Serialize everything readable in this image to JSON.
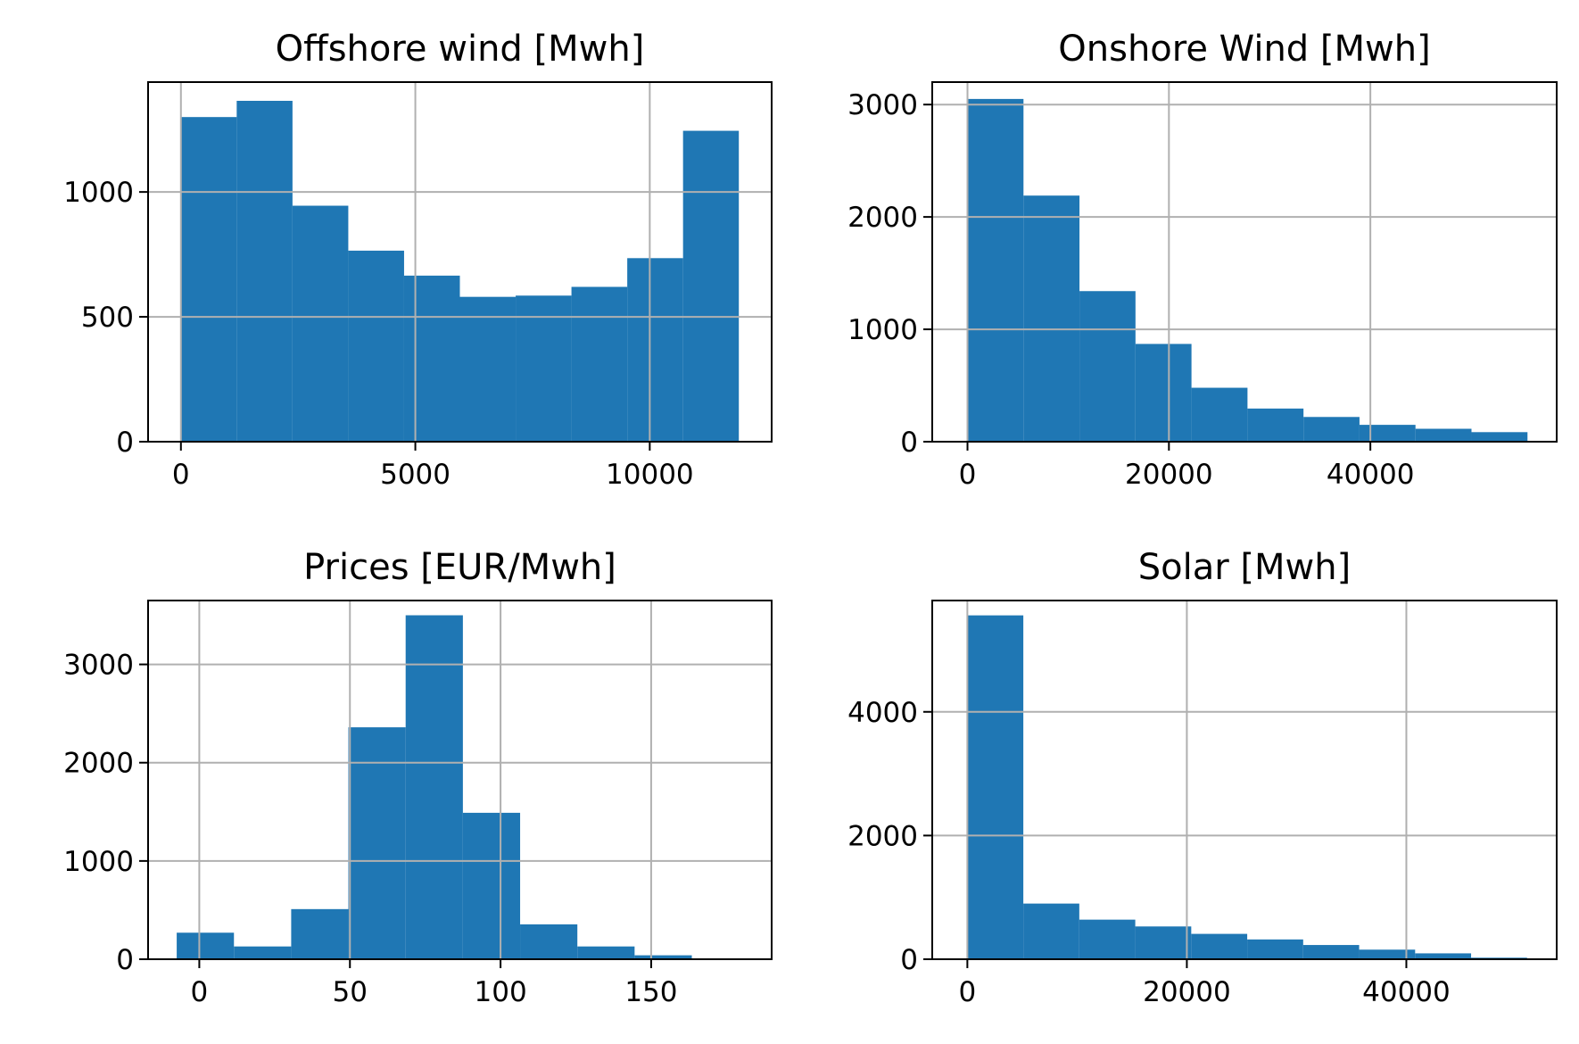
{
  "colors": {
    "bar": "#1f77b4",
    "grid": "#b0b0b0"
  },
  "chart_data": [
    {
      "type": "bar",
      "title": "Offshore wind [Mwh]",
      "xlabel": "",
      "ylabel": "",
      "grid": true,
      "xlim": [
        -700,
        12600
      ],
      "ylim": [
        0,
        1440
      ],
      "xticks": [
        0,
        5000,
        10000
      ],
      "yticks": [
        0,
        500,
        1000
      ],
      "bins": [
        {
          "x0": 0,
          "x1": 1190,
          "count": 1300
        },
        {
          "x0": 1190,
          "x1": 2380,
          "count": 1365
        },
        {
          "x0": 2380,
          "x1": 3570,
          "count": 945
        },
        {
          "x0": 3570,
          "x1": 4760,
          "count": 765
        },
        {
          "x0": 4760,
          "x1": 5950,
          "count": 665
        },
        {
          "x0": 5950,
          "x1": 7140,
          "count": 580
        },
        {
          "x0": 7140,
          "x1": 8330,
          "count": 585
        },
        {
          "x0": 8330,
          "x1": 9520,
          "count": 620
        },
        {
          "x0": 9520,
          "x1": 10710,
          "count": 735
        },
        {
          "x0": 10710,
          "x1": 11900,
          "count": 1245
        }
      ]
    },
    {
      "type": "bar",
      "title": "Onshore Wind [Mwh]",
      "xlabel": "",
      "ylabel": "",
      "grid": true,
      "xlim": [
        -3500,
        58500
      ],
      "ylim": [
        0,
        3200
      ],
      "xticks": [
        0,
        20000,
        40000
      ],
      "yticks": [
        0,
        1000,
        2000,
        3000
      ],
      "bins": [
        {
          "x0": 0,
          "x1": 5560,
          "count": 3050
        },
        {
          "x0": 5560,
          "x1": 11120,
          "count": 2190
        },
        {
          "x0": 11120,
          "x1": 16680,
          "count": 1340
        },
        {
          "x0": 16680,
          "x1": 22240,
          "count": 870
        },
        {
          "x0": 22240,
          "x1": 27800,
          "count": 480
        },
        {
          "x0": 27800,
          "x1": 33360,
          "count": 295
        },
        {
          "x0": 33360,
          "x1": 38920,
          "count": 220
        },
        {
          "x0": 38920,
          "x1": 44480,
          "count": 150
        },
        {
          "x0": 44480,
          "x1": 50040,
          "count": 115
        },
        {
          "x0": 50040,
          "x1": 55600,
          "count": 85
        }
      ]
    },
    {
      "type": "bar",
      "title": "Prices [EUR/Mwh]",
      "xlabel": "",
      "ylabel": "",
      "grid": true,
      "xlim": [
        -17,
        190
      ],
      "ylim": [
        0,
        3650
      ],
      "xticks": [
        0,
        50,
        100,
        150
      ],
      "yticks": [
        0,
        1000,
        2000,
        3000
      ],
      "bins": [
        {
          "x0": -7.5,
          "x1": 11.5,
          "count": 270
        },
        {
          "x0": 11.5,
          "x1": 30.5,
          "count": 130
        },
        {
          "x0": 30.5,
          "x1": 49.5,
          "count": 510
        },
        {
          "x0": 49.5,
          "x1": 68.5,
          "count": 2360
        },
        {
          "x0": 68.5,
          "x1": 87.5,
          "count": 3500
        },
        {
          "x0": 87.5,
          "x1": 106.5,
          "count": 1490
        },
        {
          "x0": 106.5,
          "x1": 125.5,
          "count": 355
        },
        {
          "x0": 125.5,
          "x1": 144.5,
          "count": 130
        },
        {
          "x0": 144.5,
          "x1": 163.5,
          "count": 40
        },
        {
          "x0": 163.5,
          "x1": 182.5,
          "count": 8
        }
      ]
    },
    {
      "type": "bar",
      "title": "Solar [Mwh]",
      "xlabel": "",
      "ylabel": "",
      "grid": true,
      "xlim": [
        -3200,
        53700
      ],
      "ylim": [
        0,
        5800
      ],
      "xticks": [
        0,
        20000,
        40000
      ],
      "yticks": [
        0,
        2000,
        4000
      ],
      "bins": [
        {
          "x0": 0,
          "x1": 5100,
          "count": 5560
        },
        {
          "x0": 5100,
          "x1": 10200,
          "count": 900
        },
        {
          "x0": 10200,
          "x1": 15300,
          "count": 640
        },
        {
          "x0": 15300,
          "x1": 20400,
          "count": 530
        },
        {
          "x0": 20400,
          "x1": 25500,
          "count": 410
        },
        {
          "x0": 25500,
          "x1": 30600,
          "count": 320
        },
        {
          "x0": 30600,
          "x1": 35700,
          "count": 230
        },
        {
          "x0": 35700,
          "x1": 40800,
          "count": 155
        },
        {
          "x0": 40800,
          "x1": 45900,
          "count": 95
        },
        {
          "x0": 45900,
          "x1": 51000,
          "count": 25
        }
      ]
    }
  ]
}
